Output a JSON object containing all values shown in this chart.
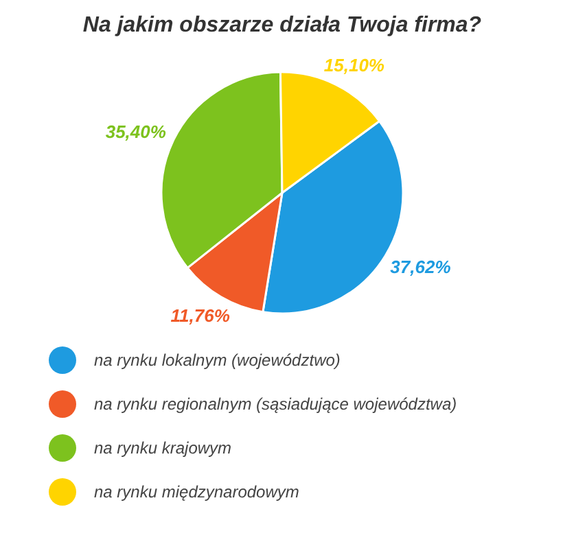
{
  "chart_data": {
    "type": "pie",
    "title": "Na jakim obszarze działa Twoja firma?",
    "categories": [
      "na rynku lokalnym (województwo)",
      "na rynku regionalnym (sąsiadujące województwa)",
      "na rynku krajowym",
      "na rynku międzynarodowym"
    ],
    "values": [
      37.62,
      11.76,
      35.4,
      15.1
    ],
    "colors": [
      "#1e9be0",
      "#f05a28",
      "#7dc21e",
      "#ffd400"
    ],
    "value_labels": [
      "37,62%",
      "11,76%",
      "35,40%",
      "15,10%"
    ],
    "legend": "bottom"
  }
}
